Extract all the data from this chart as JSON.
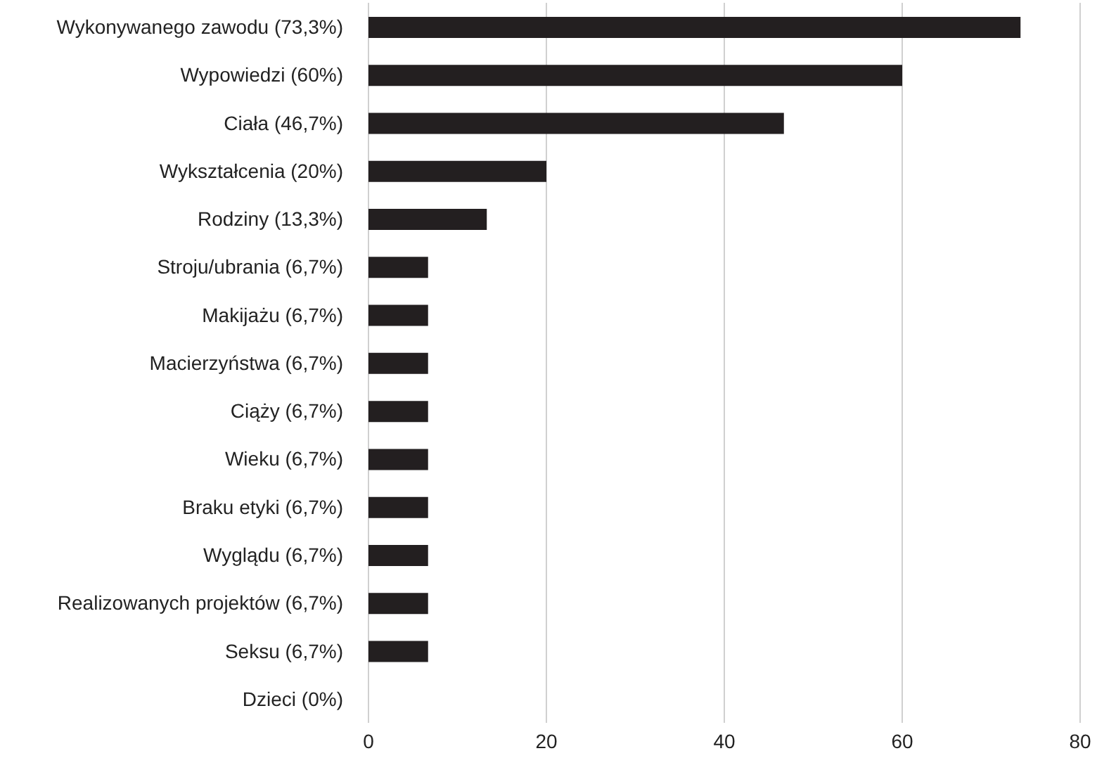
{
  "chart_data": {
    "type": "bar",
    "orientation": "horizontal",
    "categories": [
      "Wykonywanego zawodu (73,3%)",
      "Wypowiedzi (60%)",
      "Ciała (46,7%)",
      "Wykształcenia (20%)",
      "Rodziny (13,3%)",
      "Stroju/ubrania (6,7%)",
      "Makijażu (6,7%)",
      "Macierzyństwa (6,7%)",
      "Ciąży (6,7%)",
      "Wieku (6,7%)",
      "Braku etyki (6,7%)",
      "Wyglądu (6,7%)",
      "Realizowanych projektów (6,7%)",
      "Seksu (6,7%)",
      "Dzieci (0%)"
    ],
    "values": [
      73.3,
      60,
      46.7,
      20,
      13.3,
      6.7,
      6.7,
      6.7,
      6.7,
      6.7,
      6.7,
      6.7,
      6.7,
      6.7,
      0
    ],
    "color": "#231f20",
    "xlim": [
      0,
      80
    ],
    "xticks": [
      0,
      20,
      40,
      60,
      80
    ],
    "grid": "x"
  }
}
